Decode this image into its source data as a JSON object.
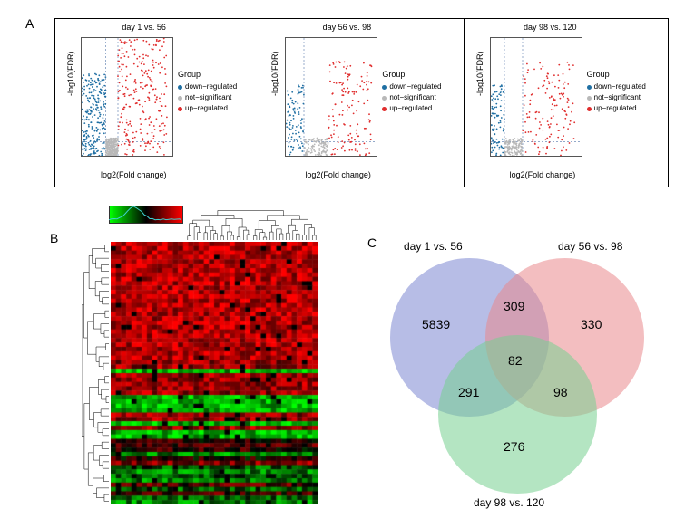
{
  "panelLabels": {
    "A": "A",
    "B": "B",
    "C": "C"
  },
  "volcano": {
    "ylabel": "-log10(FDR)",
    "xlabel": "log2(Fold change)",
    "legend_title": "Group",
    "legend": [
      {
        "label": "down−regulated",
        "color": "#1f6fa3"
      },
      {
        "label": "not−significant",
        "color": "#b8b8b8"
      },
      {
        "label": "up−regulated",
        "color": "#e02d2d"
      }
    ],
    "thresh_line_color": "#5577aa",
    "plots": [
      {
        "title": "day 1 vs. 56",
        "xlim": [
          -5,
          10
        ],
        "ylim": [
          0,
          250
        ],
        "xticks": [
          -5,
          0,
          5,
          10
        ],
        "yticks": [
          0,
          50,
          100,
          150,
          200
        ]
      },
      {
        "title": "day 56 vs. 98",
        "xlim": [
          -2.5,
          5.0
        ],
        "ylim": [
          0,
          12.5
        ],
        "xticks": [
          -2.5,
          0,
          2.5,
          5.0
        ],
        "yticks": [
          0,
          2.5,
          5,
          7.5,
          10,
          12.5
        ]
      },
      {
        "title": "day 98 vs. 120",
        "xlim": [
          -2.5,
          7.5
        ],
        "ylim": [
          0,
          15
        ],
        "xticks": [
          -2.5,
          0,
          2.5,
          5.0,
          7.5
        ],
        "yticks": [
          0,
          5,
          10,
          15
        ]
      }
    ]
  },
  "heatmap": {
    "gradient": [
      "#00ff00",
      "#000000",
      "#ff0000"
    ],
    "rows": 60,
    "cols": 40,
    "hist_line_color": "#40d0d0"
  },
  "venn": {
    "circle_colors": {
      "a": "#7b87d1",
      "b": "#e9888d",
      "c": "#77cf8f"
    },
    "labels": {
      "a": "day 1 vs. 56",
      "b": "day 56 vs. 98",
      "c": "day 98 vs. 120"
    },
    "values": {
      "only_a": 5839,
      "only_b": 330,
      "only_c": 276,
      "ab": 309,
      "ac": 291,
      "bc": 98,
      "abc": 82
    }
  }
}
